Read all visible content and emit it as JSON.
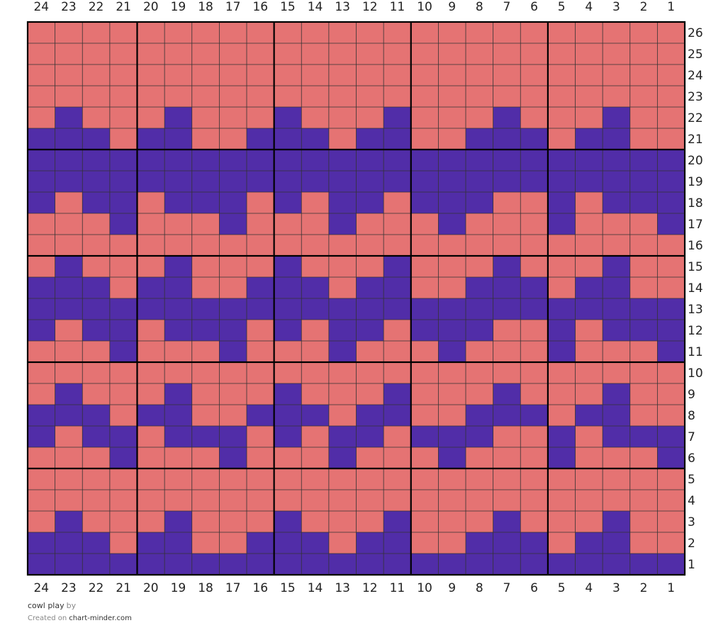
{
  "colors": {
    "main": "#E57373",
    "contrast": "#512DA8",
    "grid_line": "#333333",
    "block_line": "#000000"
  },
  "column_numbers": [
    "24",
    "23",
    "22",
    "21",
    "20",
    "19",
    "18",
    "17",
    "16",
    "15",
    "14",
    "13",
    "12",
    "11",
    "10",
    "9",
    "8",
    "7",
    "6",
    "5",
    "4",
    "3",
    "2",
    "1"
  ],
  "row_numbers": [
    "26",
    "25",
    "24",
    "23",
    "22",
    "21",
    "20",
    "19",
    "18",
    "17",
    "16",
    "15",
    "14",
    "13",
    "12",
    "11",
    "10",
    "9",
    "8",
    "7",
    "6",
    "5",
    "4",
    "3",
    "2",
    "1"
  ],
  "chart_data": {
    "type": "table",
    "description_of_cells": "m = main color, c = contrast color; rows listed top (row 26) to bottom (row 1), columns left (24) to right (1)",
    "rows": [
      "mmmmmmmmmmmmmmmmmmmmmmmm",
      "mmmmmmmmmmmmmmmmmmmmmmmm",
      "mmmmmmmmmmmmmmmmmmmmmmmm",
      "mmmmmmmmmmmmmmmmmmmmmmmm",
      "mcmmmcmmmcmmmcmmmcmmmcmm",
      "cccmccmmcccmccmmcccmccmm",
      "cccccccccccccccccccccccc",
      "cccccccccccccccccccccccc",
      "cmccmcccmcmccmcccmmcmccc",
      "mmmcmmmcmmmcmmmcmmmcmmmc",
      "mmmmmmmmmmmmmmmmmmmmmmmm",
      "mcmmmcmmmcmmmcmmmcmmmcmm",
      "cccmccmmcccmccmmcccmccmm",
      "cccccccccccccccccccccccc",
      "cmccmcccmcmccmcccmmcmccc",
      "mmmcmmmcmmmcmmmcmmmcmmmc",
      "mmmmmmmmmmmmmmmmmmmmmmmm",
      "mcmmmcmmmcmmmcmmmcmmmcmm",
      "cccmccmmcccmccmmcccmccmm",
      "cmccmcccmcmccmcccmmcmccc",
      "mmmcmmmcmmmcmmmcmmmcmmmc",
      "mmmmmmmmmmmmmmmmmmmmmmmm",
      "mmmmmmmmmmmmmmmmmmmmmmmm",
      "mcmmmcmmmcmmmcmmmcmmmcmm",
      "cccmccmmcccmccmmcccmccmm",
      "cccccccccccccccccccccccc"
    ]
  },
  "footer": {
    "title": "cowl play",
    "by": "by",
    "created_on": "Created on",
    "site": "chart-minder.com"
  }
}
